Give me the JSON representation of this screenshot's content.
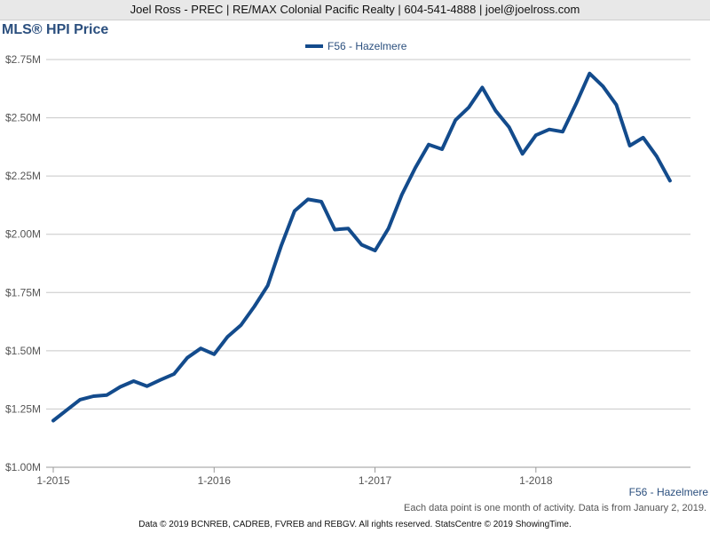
{
  "header": {
    "contact": "Joel Ross - PREC | RE/MAX Colonial Pacific Realty | 604-541-4888 | joel@joelross.com"
  },
  "colors": {
    "series": "#134b8c",
    "grid": "#c8c8c8",
    "title": "#2b4f7e"
  },
  "chart_data": {
    "type": "line",
    "title": "MLS® HPI Price",
    "xlabel": "",
    "ylabel": "",
    "grid": true,
    "legend_position": "top-center",
    "ylim": [
      1000000,
      2750000
    ],
    "y_ticks": [
      1000000,
      1250000,
      1500000,
      1750000,
      2000000,
      2250000,
      2500000,
      2750000
    ],
    "y_tick_labels": [
      "$1.00M",
      "$1.25M",
      "$1.50M",
      "$1.75M",
      "$2.00M",
      "$2.25M",
      "$2.50M",
      "$2.75M"
    ],
    "x_ticks": [
      "2015-01",
      "2016-01",
      "2017-01",
      "2018-01"
    ],
    "x_tick_labels": [
      "1-2015",
      "1-2016",
      "1-2017",
      "1-2018"
    ],
    "xlim": [
      "2015-01",
      "2018-12"
    ],
    "series": [
      {
        "name": "F56 - Hazelmere",
        "x": [
          "2015-01",
          "2015-02",
          "2015-03",
          "2015-04",
          "2015-05",
          "2015-06",
          "2015-07",
          "2015-08",
          "2015-09",
          "2015-10",
          "2015-11",
          "2015-12",
          "2016-01",
          "2016-02",
          "2016-03",
          "2016-04",
          "2016-05",
          "2016-06",
          "2016-07",
          "2016-08",
          "2016-09",
          "2016-10",
          "2016-11",
          "2016-12",
          "2017-01",
          "2017-02",
          "2017-03",
          "2017-04",
          "2017-05",
          "2017-06",
          "2017-07",
          "2017-08",
          "2017-09",
          "2017-10",
          "2017-11",
          "2017-12",
          "2018-01",
          "2018-02",
          "2018-03",
          "2018-04",
          "2018-05",
          "2018-06",
          "2018-07",
          "2018-08",
          "2018-09",
          "2018-10",
          "2018-11",
          "2018-12"
        ],
        "values": [
          1200000,
          1245000,
          1290000,
          1305000,
          1310000,
          1345000,
          1370000,
          1348000,
          1375000,
          1400000,
          1470000,
          1510000,
          1485000,
          1560000,
          1610000,
          1690000,
          1780000,
          1950000,
          2100000,
          2150000,
          2140000,
          2020000,
          2025000,
          1955000,
          1930000,
          2025000,
          2170000,
          2285000,
          2385000,
          2365000,
          2490000,
          2545000,
          2630000,
          2530000,
          2460000,
          2345000,
          2425000,
          2450000,
          2440000,
          2560000,
          2690000,
          2635000,
          2555000,
          2380000,
          2415000,
          2335000,
          2230000,
          null
        ]
      }
    ]
  },
  "footer": {
    "series_label": "F56 - Hazelmere",
    "note": "Each data point is one month of activity. Data is from January 2, 2019.",
    "copyright": "Data © 2019 BCNREB, CADREB, FVREB and REBGV. All rights reserved. StatsCentre © 2019 ShowingTime."
  }
}
